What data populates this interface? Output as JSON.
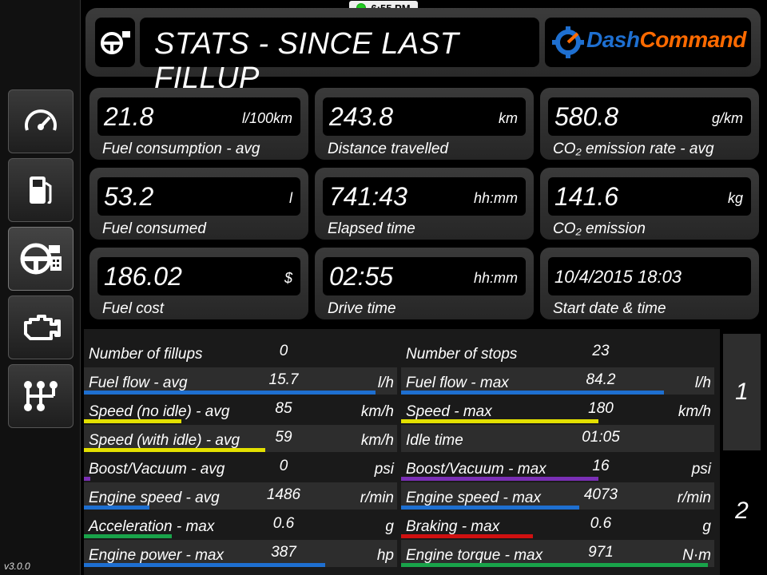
{
  "status": {
    "time": "6:55 PM"
  },
  "header": {
    "title": "STATS - SINCE LAST FILLUP",
    "logo_dash": "Dash",
    "logo_command": "Command"
  },
  "sidebar": {
    "items": [
      {
        "icon": "gauge-icon"
      },
      {
        "icon": "fuel-pump-icon"
      },
      {
        "icon": "steering-wheel-stats-icon",
        "active": true
      },
      {
        "icon": "engine-icon"
      },
      {
        "icon": "gear-shift-icon"
      }
    ],
    "version": "v3.0.0"
  },
  "tiles": [
    {
      "value": "21.8",
      "unit": "l/100km",
      "label": "Fuel consumption - avg"
    },
    {
      "value": "243.8",
      "unit": "km",
      "label": "Distance travelled"
    },
    {
      "value": "580.8",
      "unit": "g/km",
      "label": "CO₂ emission rate - avg"
    },
    {
      "value": "53.2",
      "unit": "l",
      "label": "Fuel consumed"
    },
    {
      "value": "741:43",
      "unit": "hh:mm",
      "label": "Elapsed time"
    },
    {
      "value": "141.6",
      "unit": "kg",
      "label": "CO₂ emission"
    },
    {
      "value": "186.02",
      "unit": "$",
      "label": "Fuel cost"
    },
    {
      "value": "02:55",
      "unit": "hh:mm",
      "label": "Drive time"
    },
    {
      "value": "10/4/2015 18:03",
      "unit": "",
      "label": "Start date & time"
    }
  ],
  "stats": {
    "left": [
      {
        "label": "Number of fillups",
        "value": "0",
        "unit": "",
        "bar": 0,
        "color": ""
      },
      {
        "label": "Fuel flow - avg",
        "value": "15.7",
        "unit": "l/h",
        "bar": 0.93,
        "color": "#1e6fd0"
      },
      {
        "label": "Speed (no idle) - avg",
        "value": "85",
        "unit": "km/h",
        "bar": 0.31,
        "color": "#e3e000"
      },
      {
        "label": "Speed (with idle) - avg",
        "value": "59",
        "unit": "km/h",
        "bar": 0.58,
        "color": "#e3e000"
      },
      {
        "label": "Boost/Vacuum - avg",
        "value": "0",
        "unit": "psi",
        "bar": 0.02,
        "color": "#7a2fb5"
      },
      {
        "label": "Engine speed - avg",
        "value": "1486",
        "unit": "r/min",
        "bar": 0.21,
        "color": "#1e6fd0"
      },
      {
        "label": "Acceleration - max",
        "value": "0.6",
        "unit": "g",
        "bar": 0.28,
        "color": "#19a34a"
      },
      {
        "label": "Engine power - max",
        "value": "387",
        "unit": "hp",
        "bar": 0.77,
        "color": "#1e6fd0"
      }
    ],
    "right": [
      {
        "label": "Number of stops",
        "value": "23",
        "unit": "",
        "bar": 0,
        "color": ""
      },
      {
        "label": "Fuel flow - max",
        "value": "84.2",
        "unit": "l/h",
        "bar": 0.84,
        "color": "#1e6fd0"
      },
      {
        "label": "Speed - max",
        "value": "180",
        "unit": "km/h",
        "bar": 0.63,
        "color": "#e3e000"
      },
      {
        "label": "Idle time",
        "value": "01:05",
        "unit": "",
        "bar": 0,
        "color": ""
      },
      {
        "label": "Boost/Vacuum - max",
        "value": "16",
        "unit": "psi",
        "bar": 0.63,
        "color": "#7a2fb5"
      },
      {
        "label": "Engine speed - max",
        "value": "4073",
        "unit": "r/min",
        "bar": 0.57,
        "color": "#1e6fd0"
      },
      {
        "label": "Braking - max",
        "value": "0.6",
        "unit": "g",
        "bar": 0.42,
        "color": "#d01010"
      },
      {
        "label": "Engine torque - max",
        "value": "971",
        "unit": "N·m",
        "bar": 0.98,
        "color": "#19a34a"
      }
    ]
  },
  "pages": [
    "1",
    "2"
  ]
}
